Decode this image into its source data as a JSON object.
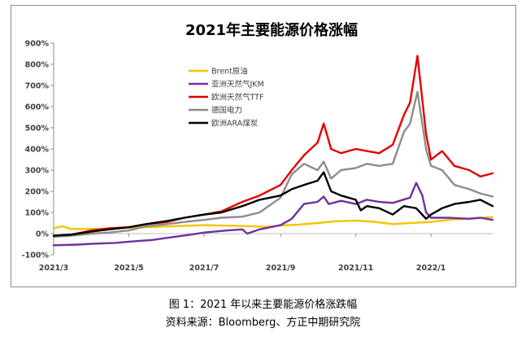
{
  "chart_data": {
    "type": "line",
    "title": "2021年主要能源价格涨幅",
    "xlabel": "",
    "ylabel": "",
    "ylim": [
      -100,
      900
    ],
    "yticks": [
      "-100%",
      "0%",
      "100%",
      "200%",
      "300%",
      "400%",
      "500%",
      "600%",
      "700%",
      "800%",
      "900%"
    ],
    "xticks": [
      "2021/3",
      "2021/5",
      "2021/7",
      "2021/9",
      "2021/11",
      "2022/1"
    ],
    "x_range": [
      "2021-03-01",
      "2022-02-20"
    ],
    "grid": false,
    "legend_position": "top-left",
    "series": [
      {
        "name": "Brent原油",
        "color": "#f4c400",
        "points": [
          [
            "2021-03-01",
            25
          ],
          [
            "2021-03-08",
            35
          ],
          [
            "2021-03-15",
            22
          ],
          [
            "2021-04-01",
            22
          ],
          [
            "2021-04-15",
            23
          ],
          [
            "2021-05-01",
            28
          ],
          [
            "2021-05-15",
            30
          ],
          [
            "2021-06-01",
            34
          ],
          [
            "2021-06-15",
            37
          ],
          [
            "2021-07-01",
            40
          ],
          [
            "2021-07-15",
            38
          ],
          [
            "2021-08-01",
            36
          ],
          [
            "2021-08-20",
            32
          ],
          [
            "2021-09-01",
            38
          ],
          [
            "2021-09-15",
            42
          ],
          [
            "2021-10-01",
            50
          ],
          [
            "2021-10-15",
            58
          ],
          [
            "2021-11-01",
            62
          ],
          [
            "2021-11-15",
            56
          ],
          [
            "2021-12-01",
            45
          ],
          [
            "2021-12-15",
            50
          ],
          [
            "2022-01-01",
            55
          ],
          [
            "2022-01-15",
            65
          ],
          [
            "2022-02-01",
            72
          ],
          [
            "2022-02-20",
            78
          ]
        ]
      },
      {
        "name": "亚洲天然气JKM",
        "color": "#7030a0",
        "points": [
          [
            "2021-03-01",
            -55
          ],
          [
            "2021-03-20",
            -52
          ],
          [
            "2021-04-01",
            -48
          ],
          [
            "2021-04-20",
            -44
          ],
          [
            "2021-05-01",
            -38
          ],
          [
            "2021-05-20",
            -30
          ],
          [
            "2021-06-01",
            -20
          ],
          [
            "2021-06-20",
            -5
          ],
          [
            "2021-07-01",
            5
          ],
          [
            "2021-07-20",
            15
          ],
          [
            "2021-08-01",
            20
          ],
          [
            "2021-08-05",
            0
          ],
          [
            "2021-08-15",
            20
          ],
          [
            "2021-09-01",
            40
          ],
          [
            "2021-09-10",
            70
          ],
          [
            "2021-09-20",
            140
          ],
          [
            "2021-10-01",
            150
          ],
          [
            "2021-10-06",
            175
          ],
          [
            "2021-10-10",
            140
          ],
          [
            "2021-10-20",
            155
          ],
          [
            "2021-11-01",
            140
          ],
          [
            "2021-11-10",
            160
          ],
          [
            "2021-11-20",
            150
          ],
          [
            "2021-12-01",
            145
          ],
          [
            "2021-12-15",
            170
          ],
          [
            "2021-12-20",
            240
          ],
          [
            "2021-12-25",
            180
          ],
          [
            "2021-12-28",
            100
          ],
          [
            "2022-01-01",
            75
          ],
          [
            "2022-01-15",
            75
          ],
          [
            "2022-02-01",
            70
          ],
          [
            "2022-02-10",
            75
          ],
          [
            "2022-02-20",
            65
          ]
        ]
      },
      {
        "name": "欧洲天然气TTF",
        "color": "#e30000",
        "points": [
          [
            "2021-03-01",
            -10
          ],
          [
            "2021-03-15",
            -5
          ],
          [
            "2021-04-01",
            15
          ],
          [
            "2021-04-15",
            25
          ],
          [
            "2021-05-01",
            30
          ],
          [
            "2021-05-15",
            45
          ],
          [
            "2021-06-01",
            55
          ],
          [
            "2021-06-15",
            75
          ],
          [
            "2021-07-01",
            90
          ],
          [
            "2021-07-15",
            105
          ],
          [
            "2021-08-01",
            150
          ],
          [
            "2021-08-15",
            180
          ],
          [
            "2021-09-01",
            230
          ],
          [
            "2021-09-10",
            300
          ],
          [
            "2021-09-20",
            370
          ],
          [
            "2021-10-01",
            430
          ],
          [
            "2021-10-06",
            520
          ],
          [
            "2021-10-12",
            400
          ],
          [
            "2021-10-20",
            380
          ],
          [
            "2021-11-01",
            400
          ],
          [
            "2021-11-10",
            390
          ],
          [
            "2021-11-20",
            380
          ],
          [
            "2021-12-01",
            420
          ],
          [
            "2021-12-10",
            560
          ],
          [
            "2021-12-15",
            620
          ],
          [
            "2021-12-21",
            840
          ],
          [
            "2021-12-28",
            470
          ],
          [
            "2022-01-01",
            350
          ],
          [
            "2022-01-10",
            390
          ],
          [
            "2022-01-20",
            320
          ],
          [
            "2022-02-01",
            300
          ],
          [
            "2022-02-10",
            270
          ],
          [
            "2022-02-20",
            285
          ]
        ]
      },
      {
        "name": "德国电力",
        "color": "#8c8c8c",
        "points": [
          [
            "2021-03-01",
            -15
          ],
          [
            "2021-03-15",
            -10
          ],
          [
            "2021-04-01",
            0
          ],
          [
            "2021-04-15",
            5
          ],
          [
            "2021-05-01",
            15
          ],
          [
            "2021-05-15",
            35
          ],
          [
            "2021-06-01",
            45
          ],
          [
            "2021-06-15",
            55
          ],
          [
            "2021-07-01",
            65
          ],
          [
            "2021-07-15",
            75
          ],
          [
            "2021-08-01",
            80
          ],
          [
            "2021-08-15",
            100
          ],
          [
            "2021-09-01",
            170
          ],
          [
            "2021-09-10",
            280
          ],
          [
            "2021-09-20",
            330
          ],
          [
            "2021-10-01",
            300
          ],
          [
            "2021-10-06",
            340
          ],
          [
            "2021-10-12",
            260
          ],
          [
            "2021-10-20",
            300
          ],
          [
            "2021-11-01",
            310
          ],
          [
            "2021-11-10",
            330
          ],
          [
            "2021-11-20",
            320
          ],
          [
            "2021-12-01",
            330
          ],
          [
            "2021-12-10",
            480
          ],
          [
            "2021-12-15",
            520
          ],
          [
            "2021-12-21",
            670
          ],
          [
            "2021-12-28",
            400
          ],
          [
            "2022-01-01",
            320
          ],
          [
            "2022-01-10",
            300
          ],
          [
            "2022-01-20",
            230
          ],
          [
            "2022-02-01",
            210
          ],
          [
            "2022-02-10",
            190
          ],
          [
            "2022-02-20",
            175
          ]
        ]
      },
      {
        "name": "欧洲ARA煤炭",
        "color": "#000000",
        "points": [
          [
            "2021-03-01",
            -10
          ],
          [
            "2021-03-15",
            -5
          ],
          [
            "2021-04-01",
            10
          ],
          [
            "2021-04-15",
            20
          ],
          [
            "2021-05-01",
            30
          ],
          [
            "2021-05-15",
            45
          ],
          [
            "2021-06-01",
            60
          ],
          [
            "2021-06-15",
            75
          ],
          [
            "2021-07-01",
            90
          ],
          [
            "2021-07-15",
            100
          ],
          [
            "2021-08-01",
            130
          ],
          [
            "2021-08-15",
            160
          ],
          [
            "2021-09-01",
            180
          ],
          [
            "2021-09-10",
            210
          ],
          [
            "2021-09-20",
            230
          ],
          [
            "2021-10-01",
            250
          ],
          [
            "2021-10-06",
            290
          ],
          [
            "2021-10-12",
            200
          ],
          [
            "2021-10-20",
            180
          ],
          [
            "2021-11-01",
            160
          ],
          [
            "2021-11-05",
            110
          ],
          [
            "2021-11-10",
            130
          ],
          [
            "2021-11-20",
            120
          ],
          [
            "2021-12-01",
            90
          ],
          [
            "2021-12-10",
            130
          ],
          [
            "2021-12-20",
            120
          ],
          [
            "2021-12-28",
            70
          ],
          [
            "2022-01-01",
            90
          ],
          [
            "2022-01-10",
            120
          ],
          [
            "2022-01-20",
            140
          ],
          [
            "2022-02-01",
            150
          ],
          [
            "2022-02-10",
            160
          ],
          [
            "2022-02-20",
            130
          ]
        ]
      }
    ]
  },
  "caption": {
    "line1": "图 1：2021 年以来主要能源价格涨跌幅",
    "line2": "资料来源：Bloomberg、方正中期研究院"
  }
}
